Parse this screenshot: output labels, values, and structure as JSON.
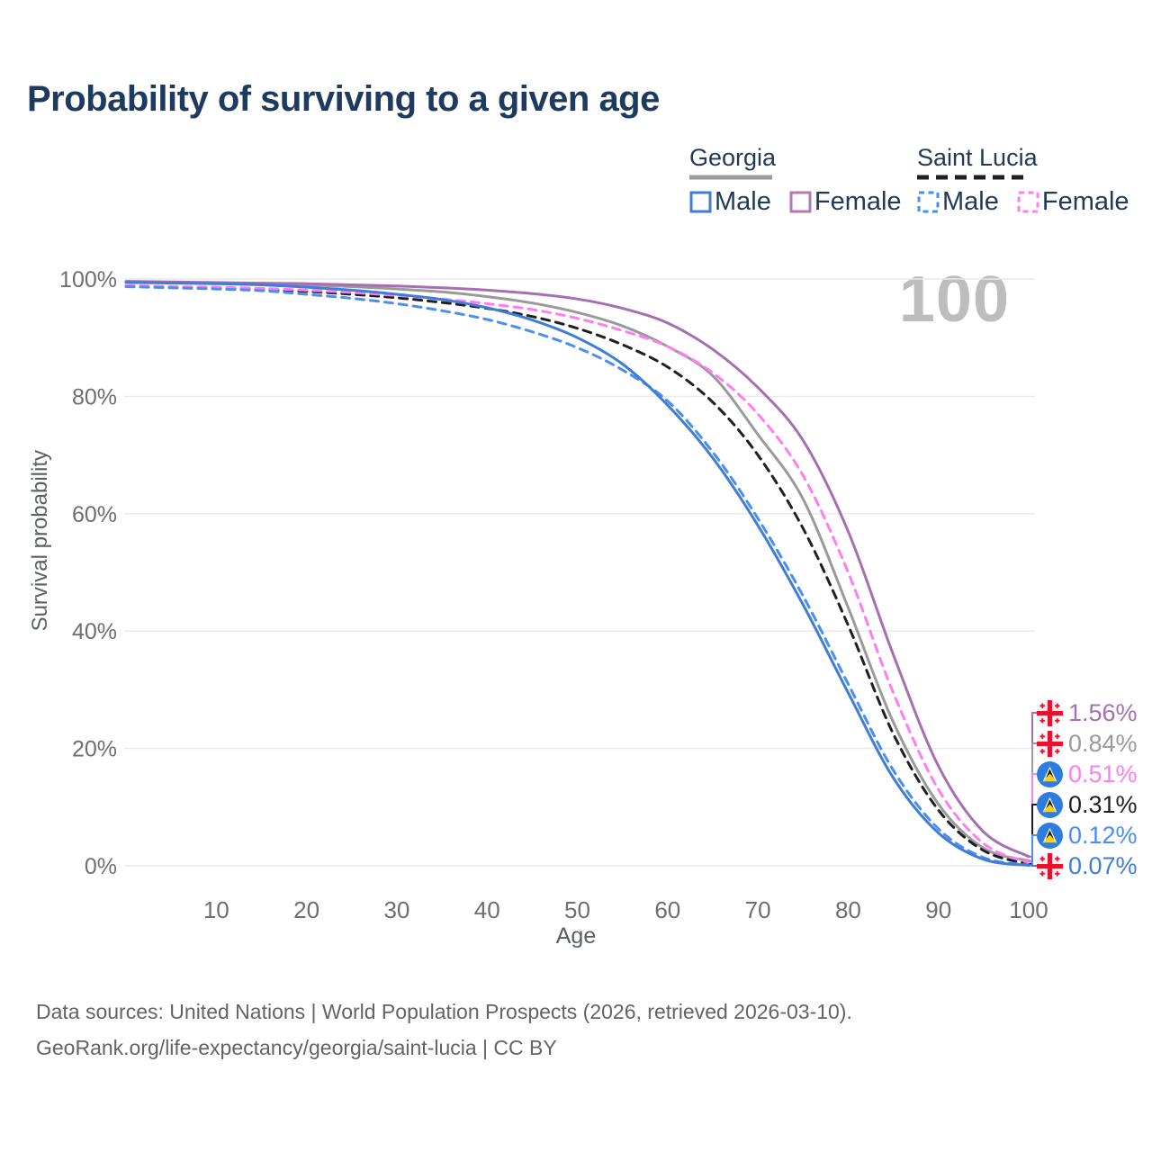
{
  "page": {
    "title": "Probability of surviving to a given age"
  },
  "watermark": "100",
  "legend": {
    "groups": [
      {
        "name": "Georgia",
        "dash": "solid",
        "line_color": "#9a9a9a",
        "items": [
          {
            "label": "Male",
            "color": "#3f7dd8",
            "dash": "solid"
          },
          {
            "label": "Female",
            "color": "#b279b2",
            "dash": "solid"
          }
        ]
      },
      {
        "name": "Saint Lucia",
        "dash": "dashed",
        "line_color": "#1f1f1f",
        "items": [
          {
            "label": "Male",
            "color": "#4b8ef2",
            "dash": "dashed"
          },
          {
            "label": "Female",
            "color": "#ff7df2",
            "dash": "dashed"
          }
        ]
      }
    ]
  },
  "chart_data": {
    "type": "line",
    "title": "Probability of surviving to a given age",
    "xlabel": "Age",
    "ylabel": "Survival probability",
    "xlim": [
      0,
      100
    ],
    "ylim": [
      0,
      100
    ],
    "grid": "horizontal",
    "y_ticks": [
      {
        "value": 0,
        "label": "0%"
      },
      {
        "value": 20,
        "label": "20%"
      },
      {
        "value": 40,
        "label": "40%"
      },
      {
        "value": 60,
        "label": "60%"
      },
      {
        "value": 80,
        "label": "80%"
      },
      {
        "value": 100,
        "label": "100%"
      }
    ],
    "x_ticks": [
      {
        "value": 10,
        "label": "10"
      },
      {
        "value": 20,
        "label": "20"
      },
      {
        "value": 30,
        "label": "30"
      },
      {
        "value": 40,
        "label": "40"
      },
      {
        "value": 50,
        "label": "50"
      },
      {
        "value": 60,
        "label": "60"
      },
      {
        "value": 70,
        "label": "70"
      },
      {
        "value": 80,
        "label": "80"
      },
      {
        "value": 90,
        "label": "90"
      },
      {
        "value": 100,
        "label": "100"
      }
    ],
    "x": [
      0,
      5,
      10,
      15,
      20,
      25,
      30,
      35,
      40,
      45,
      50,
      55,
      60,
      65,
      70,
      75,
      80,
      85,
      90,
      95,
      100
    ],
    "series": [
      {
        "key": "georgia-female",
        "name": "Georgia Female",
        "country": "Georgia",
        "sex": "Female",
        "color": "#a76fb2",
        "dash": "solid",
        "flag": "georgia",
        "end_label": "1.56%",
        "values": [
          99.6,
          99.5,
          99.4,
          99.3,
          99.2,
          99.0,
          98.8,
          98.5,
          98.1,
          97.5,
          96.6,
          95.0,
          92.5,
          88.0,
          81.5,
          72.5,
          57.0,
          36.0,
          17.0,
          5.8,
          1.56
        ]
      },
      {
        "key": "georgia",
        "name": "Georgia",
        "country": "Georgia",
        "sex": "All",
        "color": "#9a9a9a",
        "dash": "solid",
        "flag": "georgia",
        "end_label": "0.84%",
        "values": [
          99.5,
          99.4,
          99.3,
          99.2,
          99.0,
          98.7,
          98.3,
          97.8,
          97.0,
          95.9,
          94.3,
          92.0,
          88.5,
          83.5,
          73.5,
          62.5,
          44.0,
          24.5,
          10.5,
          3.0,
          0.84
        ]
      },
      {
        "key": "saint-lucia-female",
        "name": "Saint Lucia Female",
        "country": "Saint Lucia",
        "sex": "Female",
        "color": "#ff7df2",
        "dash": "dashed",
        "flag": "saint-lucia",
        "end_label": "0.51%",
        "values": [
          98.9,
          98.7,
          98.6,
          98.4,
          98.1,
          97.7,
          97.2,
          96.6,
          95.8,
          94.8,
          93.3,
          91.2,
          88.5,
          84.0,
          77.0,
          66.5,
          50.0,
          29.5,
          13.0,
          3.8,
          0.51
        ]
      },
      {
        "key": "saint-lucia",
        "name": "Saint Lucia",
        "country": "Saint Lucia",
        "sex": "All",
        "color": "#1f1f1f",
        "dash": "dashed",
        "flag": "saint-lucia",
        "end_label": "0.31%",
        "values": [
          98.8,
          98.6,
          98.5,
          98.2,
          97.9,
          97.4,
          96.8,
          96.0,
          95.0,
          93.6,
          91.6,
          88.8,
          85.0,
          79.0,
          70.0,
          57.5,
          41.0,
          22.5,
          9.5,
          2.6,
          0.31
        ]
      },
      {
        "key": "saint-lucia-male",
        "name": "Saint Lucia Male",
        "country": "Saint Lucia",
        "sex": "Male",
        "color": "#4b8ef2",
        "dash": "dashed",
        "flag": "saint-lucia",
        "end_label": "0.12%",
        "values": [
          98.7,
          98.5,
          98.3,
          98.0,
          97.4,
          96.7,
          95.8,
          94.6,
          93.1,
          91.0,
          88.3,
          84.5,
          79.2,
          70.5,
          59.2,
          46.0,
          31.0,
          16.3,
          6.3,
          1.4,
          0.12
        ]
      },
      {
        "key": "georgia-male",
        "name": "Georgia Male",
        "country": "Georgia",
        "sex": "Male",
        "color": "#3f7dd8",
        "dash": "solid",
        "flag": "georgia",
        "end_label": "0.07%",
        "values": [
          99.4,
          99.3,
          99.2,
          99.0,
          98.6,
          98.1,
          97.4,
          96.5,
          95.1,
          93.0,
          90.0,
          85.5,
          78.5,
          69.5,
          58.0,
          44.5,
          29.5,
          15.0,
          5.6,
          1.1,
          0.07
        ]
      }
    ]
  },
  "colors": {
    "title": "#1e3a5f",
    "grid": "#e9e9e9",
    "tick": "#6e6e6e",
    "flag_georgia_red": "#e8112d",
    "flag_saint_lucia_blue": "#2e7ce0",
    "flag_saint_lucia_yellow": "#fcd116"
  },
  "footer": {
    "line1": "Data sources: United Nations | World Population Prospects (2026, retrieved 2026-03-10).",
    "line2": "GeoRank.org/life-expectancy/georgia/saint-lucia | CC BY"
  }
}
